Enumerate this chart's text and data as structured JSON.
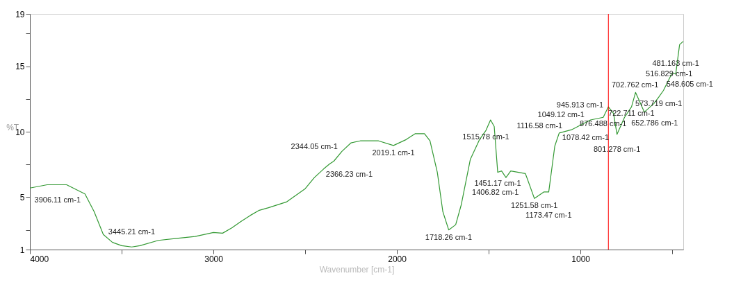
{
  "chart_data": {
    "type": "line",
    "xlabel": "Wavenumber [cm-1]",
    "ylabel": "%T",
    "grid": false,
    "marker": "none",
    "line_style": "solid",
    "xlim": [
      4000,
      440
    ],
    "ylim": [
      1,
      19
    ],
    "xticks": [
      4000,
      {
        "value": 3500,
        "label": null
      },
      3000,
      {
        "value": 2500,
        "label": null
      },
      2000,
      {
        "value": 1500,
        "label": null
      },
      1000,
      {
        "value": 500,
        "label": null
      }
    ],
    "yticks": [
      1,
      {
        "value": 2.5,
        "label": null
      },
      5,
      {
        "value": 7.5,
        "label": null
      },
      10,
      {
        "value": 12.5,
        "label": null
      },
      15,
      {
        "value": 17.5,
        "label": null
      },
      19
    ],
    "x": [
      4000,
      3906,
      3800,
      3700,
      3650,
      3600,
      3550,
      3500,
      3445,
      3400,
      3300,
      3200,
      3100,
      3000,
      2950,
      2900,
      2850,
      2800,
      2750,
      2700,
      2600,
      2500,
      2450,
      2400,
      2366,
      2344,
      2300,
      2250,
      2200,
      2100,
      2019,
      1950,
      1900,
      1850,
      1820,
      1780,
      1750,
      1718,
      1680,
      1650,
      1600,
      1550,
      1515,
      1490,
      1470,
      1451,
      1430,
      1406,
      1380,
      1300,
      1251,
      1200,
      1173,
      1140,
      1116,
      1049,
      1000,
      945,
      876,
      848,
      820,
      801,
      760,
      722,
      700,
      652,
      600,
      573,
      548,
      500,
      481,
      460,
      440
    ],
    "series": [
      {
        "color": "#339933",
        "values": [
          5.7,
          5.95,
          5.95,
          5.25,
          3.9,
          2.15,
          1.55,
          1.3,
          1.2,
          1.3,
          1.7,
          1.85,
          2.0,
          2.3,
          2.25,
          2.65,
          3.15,
          3.6,
          4.0,
          4.2,
          4.65,
          5.65,
          6.5,
          7.15,
          7.55,
          7.75,
          8.5,
          9.15,
          9.3,
          9.3,
          8.95,
          9.4,
          9.85,
          9.85,
          9.3,
          6.9,
          3.9,
          2.5,
          2.9,
          4.4,
          7.9,
          9.4,
          10.1,
          10.9,
          10.4,
          6.9,
          7.0,
          6.5,
          7.0,
          6.8,
          4.9,
          5.4,
          5.4,
          8.9,
          9.9,
          10.15,
          10.5,
          10.9,
          11.1,
          11.9,
          11.4,
          9.8,
          11.1,
          11.9,
          13.0,
          11.5,
          12.15,
          12.65,
          13.15,
          14.5,
          14.4,
          16.65,
          16.9
        ]
      }
    ],
    "ref_lines": [
      {
        "axis": "x",
        "value": 848,
        "color": "#ff0000"
      }
    ],
    "annotations": [
      {
        "text": "3906.11 cm-1",
        "x": 3906.11,
        "y": 5.95
      },
      {
        "text": "3445.21 cm-1",
        "x": 3445.21,
        "y": 1.2
      },
      {
        "text": "2366.23 cm-1",
        "x": 2366.23,
        "y": 7.55
      },
      {
        "text": "2344.05 cm-1",
        "x": 2344.05,
        "y": 7.75
      },
      {
        "text": "2019.1 cm-1",
        "x": 2019.1,
        "y": 8.95
      },
      {
        "text": "1718.26 cm-1",
        "x": 1718.26,
        "y": 2.5
      },
      {
        "text": "1515.78 cm-1",
        "x": 1515.78,
        "y": 10.1
      },
      {
        "text": "1451.17 cm-1",
        "x": 1451.17,
        "y": 6.9
      },
      {
        "text": "1406.82 cm-1",
        "x": 1406.82,
        "y": 6.5
      },
      {
        "text": "1251.58 cm-1",
        "x": 1251.58,
        "y": 4.9
      },
      {
        "text": "1173.47 cm-1",
        "x": 1173.47,
        "y": 5.4
      },
      {
        "text": "1116.58 cm-1",
        "x": 1116.58,
        "y": 9.9
      },
      {
        "text": "1078.42 cm-1",
        "x": 1078.42,
        "y": 10.1
      },
      {
        "text": "1049.12 cm-1",
        "x": 1049.12,
        "y": 10.15
      },
      {
        "text": "945.913 cm-1",
        "x": 945.913,
        "y": 10.9
      },
      {
        "text": "876.488 cm-1",
        "x": 876.488,
        "y": 11.1
      },
      {
        "text": "801.278 cm-1",
        "x": 801.278,
        "y": 9.8
      },
      {
        "text": "722.711 cm-1",
        "x": 722.711,
        "y": 11.9
      },
      {
        "text": "702.762 cm-1",
        "x": 702.762,
        "y": 13.0
      },
      {
        "text": "652.786 cm-1",
        "x": 652.786,
        "y": 11.5
      },
      {
        "text": "573.719 cm-1",
        "x": 573.719,
        "y": 12.65
      },
      {
        "text": "548.605 cm-1",
        "x": 548.605,
        "y": 13.15
      },
      {
        "text": "516.829 cm-1",
        "x": 516.829,
        "y": 13.6
      },
      {
        "text": "481.163 cm-1",
        "x": 481.163,
        "y": 14.4
      }
    ]
  }
}
